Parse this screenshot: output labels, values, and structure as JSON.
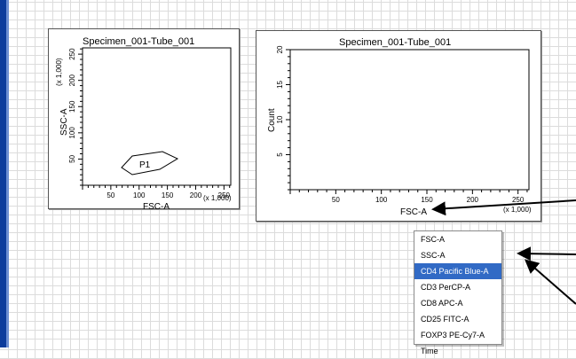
{
  "plots": [
    {
      "title": "Specimen_001-Tube_001",
      "xlabel": "FSC-A",
      "ylabel": "SSC-A",
      "x_multiplier": "(x 1,000)",
      "y_multiplier": "(x 1,000)",
      "x_ticks": [
        "50",
        "100",
        "150",
        "200",
        "250"
      ],
      "y_ticks": [
        "50",
        "100",
        "150",
        "200",
        "250"
      ],
      "gate_label": "P1"
    },
    {
      "title": "Specimen_001-Tube_001",
      "xlabel": "FSC-A",
      "ylabel": "Count",
      "x_multiplier": "(x 1,000)",
      "x_ticks": [
        "50",
        "100",
        "150",
        "200",
        "250"
      ],
      "y_ticks": [
        "5",
        "10",
        "15",
        "20"
      ]
    }
  ],
  "context_menu": {
    "items": [
      {
        "label": "FSC-A",
        "selected": false
      },
      {
        "label": "SSC-A",
        "selected": false
      },
      {
        "label": "CD4 Pacific Blue-A",
        "selected": true
      },
      {
        "label": "CD3 PerCP-A",
        "selected": false
      },
      {
        "label": "CD8 APC-A",
        "selected": false
      },
      {
        "label": "CD25 FITC-A",
        "selected": false
      },
      {
        "label": "FOXP3 PE-Cy7-A",
        "selected": false
      },
      {
        "label": "Time",
        "selected": false
      }
    ]
  },
  "colors": {
    "selection": "#316ac5",
    "rail": "#0d3c9c",
    "grid": "#dcdcdc"
  }
}
